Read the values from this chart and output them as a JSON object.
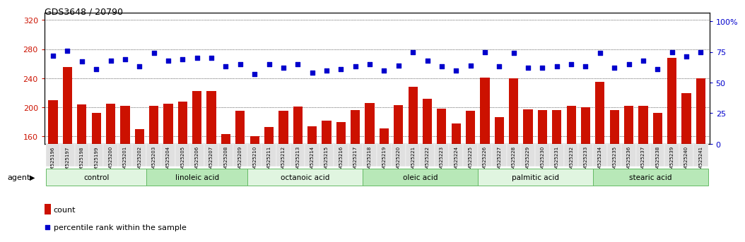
{
  "title": "GDS3648 / 20790",
  "samples": [
    "GSM525196",
    "GSM525197",
    "GSM525198",
    "GSM525199",
    "GSM525200",
    "GSM525201",
    "GSM525202",
    "GSM525203",
    "GSM525204",
    "GSM525205",
    "GSM525206",
    "GSM525207",
    "GSM525208",
    "GSM525209",
    "GSM525210",
    "GSM525211",
    "GSM525212",
    "GSM525213",
    "GSM525214",
    "GSM525215",
    "GSM525216",
    "GSM525217",
    "GSM525218",
    "GSM525219",
    "GSM525220",
    "GSM525221",
    "GSM525222",
    "GSM525223",
    "GSM525224",
    "GSM525225",
    "GSM525226",
    "GSM525227",
    "GSM525228",
    "GSM525229",
    "GSM525230",
    "GSM525231",
    "GSM525232",
    "GSM525233",
    "GSM525234",
    "GSM525235",
    "GSM525236",
    "GSM525237",
    "GSM525238",
    "GSM525239",
    "GSM525240",
    "GSM525241"
  ],
  "counts": [
    210,
    255,
    204,
    192,
    205,
    202,
    170,
    202,
    205,
    208,
    222,
    222,
    163,
    195,
    160,
    173,
    195,
    201,
    174,
    182,
    180,
    196,
    206,
    171,
    203,
    228,
    212,
    198,
    178,
    195,
    241,
    187,
    240,
    197,
    196,
    196,
    202,
    200,
    235,
    196,
    202,
    202,
    192,
    268,
    220,
    240
  ],
  "percentiles": [
    72,
    76,
    67,
    61,
    68,
    69,
    63,
    74,
    68,
    69,
    70,
    70,
    63,
    65,
    57,
    65,
    62,
    65,
    58,
    60,
    61,
    63,
    65,
    60,
    64,
    75,
    68,
    63,
    60,
    64,
    75,
    63,
    74,
    62,
    62,
    63,
    65,
    63,
    74,
    62,
    65,
    68,
    61,
    75,
    71,
    75
  ],
  "groups": [
    {
      "label": "control",
      "start": 0,
      "end": 7
    },
    {
      "label": "linoleic acid",
      "start": 7,
      "end": 14
    },
    {
      "label": "octanoic acid",
      "start": 14,
      "end": 22
    },
    {
      "label": "oleic acid",
      "start": 22,
      "end": 30
    },
    {
      "label": "palmitic acid",
      "start": 30,
      "end": 38
    },
    {
      "label": "stearic acid",
      "start": 38,
      "end": 46
    }
  ],
  "bar_color": "#cc1100",
  "dot_color": "#0000cc",
  "ylim_left": [
    150,
    330
  ],
  "ylim_right": [
    0,
    107
  ],
  "yticks_left": [
    160,
    200,
    240,
    280,
    320
  ],
  "yticks_right": [
    0,
    25,
    50,
    75,
    100
  ],
  "ylabel_left_color": "#cc1100",
  "ylabel_right_color": "#0000cc",
  "bg_color": "#ffffff",
  "tick_bg_color": "#e8e8e8",
  "label_count": "count",
  "label_pct": "percentile rank within the sample",
  "agent_label": "agent",
  "group_colors_alt": [
    "#e0f5e0",
    "#b8e8b8"
  ],
  "group_border_color": "#66bb66"
}
